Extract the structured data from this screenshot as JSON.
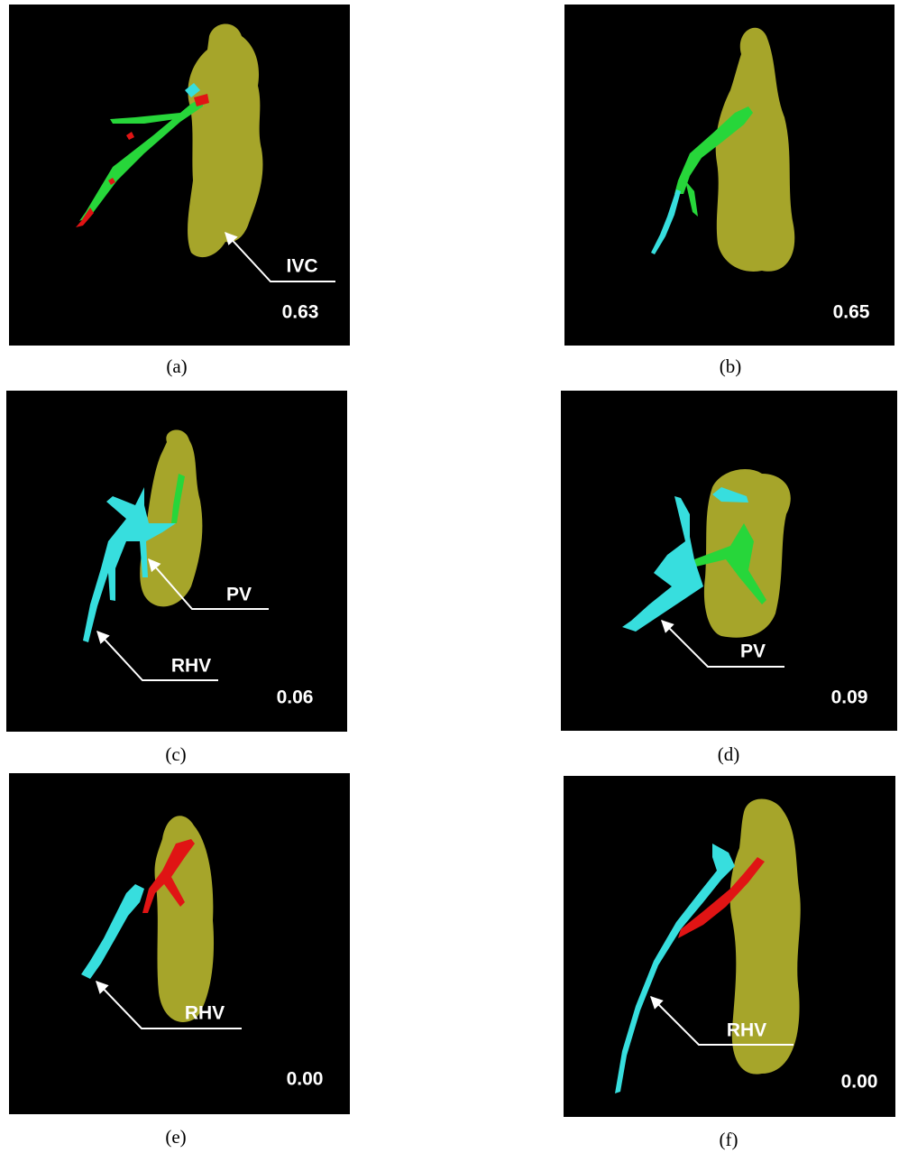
{
  "panels": [
    {
      "caption": "(a)",
      "score": "0.63",
      "labels": [
        "IVC"
      ]
    },
    {
      "caption": "(b)",
      "score": "0.65",
      "labels": []
    },
    {
      "caption": "(c)",
      "score": "0.06",
      "labels": [
        "PV",
        "RHV"
      ]
    },
    {
      "caption": "(d)",
      "score": "0.09",
      "labels": [
        "PV"
      ]
    },
    {
      "caption": "(e)",
      "score": "0.00",
      "labels": [
        "RHV"
      ]
    },
    {
      "caption": "(f)",
      "score": "0.00",
      "labels": [
        "RHV"
      ]
    }
  ]
}
